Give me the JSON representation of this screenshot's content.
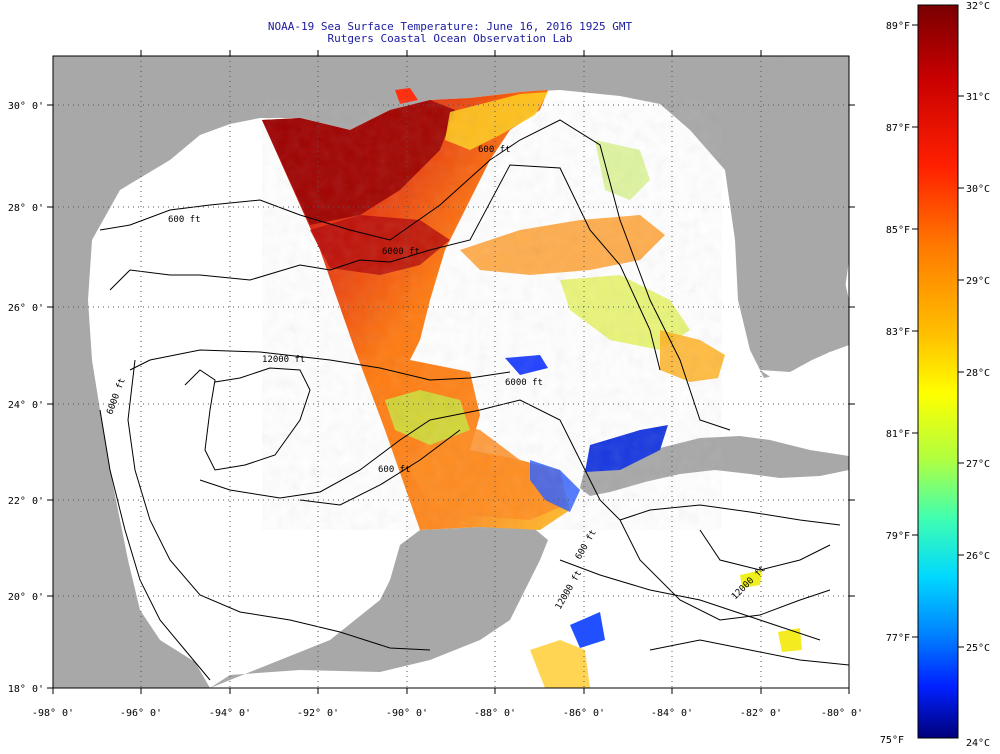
{
  "header": {
    "title": "NOAA-19 Sea Surface Temperature:  June 16, 2016 1925 GMT",
    "subtitle": "Rutgers Coastal Ocean Observation Lab"
  },
  "map": {
    "lon_labels": [
      "-98° 0'",
      "-96° 0'",
      "-94° 0'",
      "-92° 0'",
      "-90° 0'",
      "-88° 0'",
      "-86° 0'",
      "-84° 0'",
      "-82° 0'",
      "-80° 0'"
    ],
    "lat_labels": [
      "30° 0'",
      "28° 0'",
      "26° 0'",
      "24° 0'",
      "22° 0'",
      "20° 0'",
      "18° 0'"
    ],
    "lon_range": [
      -98,
      -80
    ],
    "lat_range": [
      18,
      31
    ],
    "contour_labels": [
      "600 ft",
      "600 ft",
      "6000 ft",
      "12000 ft",
      "6000 ft",
      "600 ft",
      "6000 ft",
      "600 ft",
      "12000 ft",
      "12000 ft"
    ]
  },
  "colorbar": {
    "fahrenheit_labels": [
      "89°F",
      "87°F",
      "85°F",
      "83°F",
      "81°F",
      "79°F",
      "77°F",
      "75°F"
    ],
    "celsius_labels": [
      "32°C",
      "31°C",
      "30°C",
      "29°C",
      "28°C",
      "27°C",
      "26°C",
      "25°C",
      "24°C"
    ],
    "min_c": 24,
    "max_c": 32
  },
  "colors": {
    "land": "#a8a8a8",
    "ocean_nodata": "#ffffff",
    "title": "#1a1aa0"
  }
}
